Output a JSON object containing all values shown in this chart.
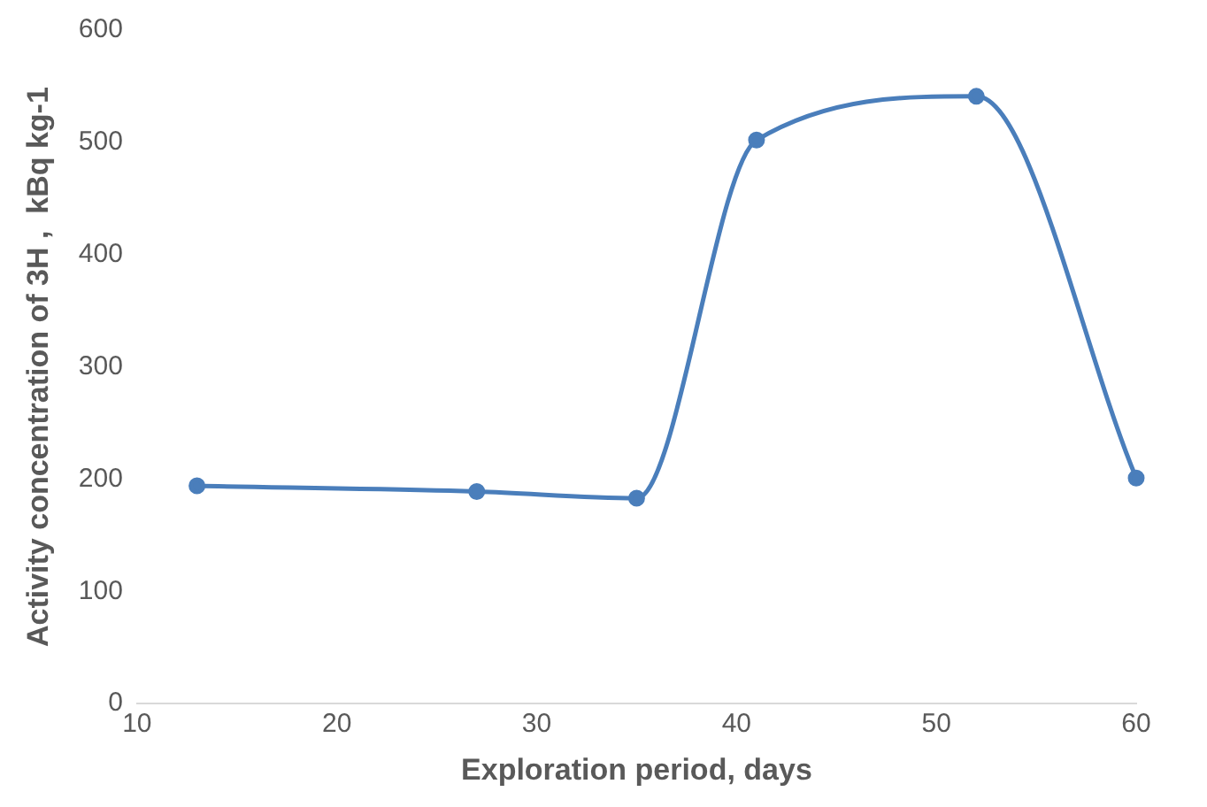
{
  "chart_data": {
    "type": "line",
    "xlabel": "Exploration period, days",
    "ylabel": "Activity concentration of 3H ,  kBq kg-1",
    "x": [
      13,
      27,
      35,
      41,
      52,
      60
    ],
    "series": [
      {
        "color": "#4a7ebb",
        "values": [
          194,
          189,
          183,
          502,
          541,
          201
        ]
      }
    ],
    "xlim": [
      10,
      60
    ],
    "xticks": [
      10,
      20,
      30,
      40,
      50,
      60
    ],
    "ylim": [
      0,
      600
    ],
    "yticks": [
      0,
      100,
      200,
      300,
      400,
      500,
      600
    ],
    "grid": false,
    "legend": false,
    "marker": "circle",
    "line_style": "solid"
  }
}
